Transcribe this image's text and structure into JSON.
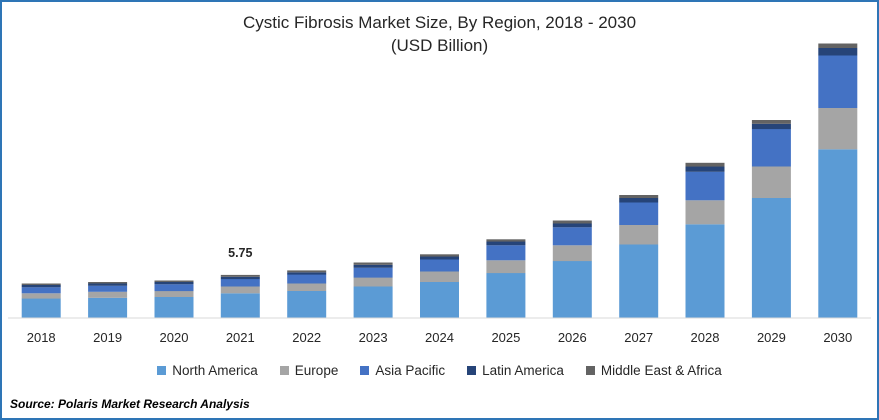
{
  "title": "Cystic Fibrosis Market Size, By Region, 2018 - 2030",
  "subtitle": "(USD Billion)",
  "source": "Source: Polaris  Market Research Analysis",
  "annotation": {
    "category": "2021",
    "text": "5.75"
  },
  "colors": {
    "North America": "#5b9bd5",
    "Europe": "#a5a5a5",
    "Asia Pacific": "#4472c4",
    "Latin America": "#264478",
    "Middle East & Africa": "#636363"
  },
  "chart_data": {
    "type": "bar",
    "stacked": true,
    "title": "Cystic Fibrosis Market Size, By Region, 2018 - 2030",
    "subtitle": "(USD Billion)",
    "categories": [
      "2018",
      "2019",
      "2020",
      "2021",
      "2022",
      "2023",
      "2024",
      "2025",
      "2026",
      "2027",
      "2028",
      "2029",
      "2030"
    ],
    "series": [
      {
        "name": "North America",
        "values": [
          2.6,
          2.7,
          2.8,
          3.3,
          3.6,
          4.2,
          4.8,
          6.0,
          7.6,
          9.8,
          12.5,
          16.0,
          22.5
        ]
      },
      {
        "name": "Europe",
        "values": [
          0.7,
          0.8,
          0.8,
          0.9,
          1.0,
          1.2,
          1.4,
          1.7,
          2.1,
          2.6,
          3.2,
          4.2,
          5.5
        ]
      },
      {
        "name": "Asia Pacific",
        "values": [
          0.8,
          0.8,
          0.9,
          1.0,
          1.2,
          1.3,
          1.6,
          2.0,
          2.4,
          3.0,
          3.8,
          5.0,
          7.0
        ]
      },
      {
        "name": "Latin America",
        "values": [
          0.3,
          0.3,
          0.3,
          0.3,
          0.3,
          0.4,
          0.4,
          0.5,
          0.5,
          0.6,
          0.7,
          0.7,
          1.0
        ]
      },
      {
        "name": "Middle East & Africa",
        "values": [
          0.2,
          0.2,
          0.2,
          0.25,
          0.25,
          0.3,
          0.3,
          0.3,
          0.4,
          0.4,
          0.5,
          0.5,
          0.6
        ]
      }
    ],
    "data_labels": [
      {
        "category": "2021",
        "value": 5.75
      }
    ],
    "ylim": [
      0,
      40
    ],
    "grid": false,
    "legend_position": "bottom"
  }
}
